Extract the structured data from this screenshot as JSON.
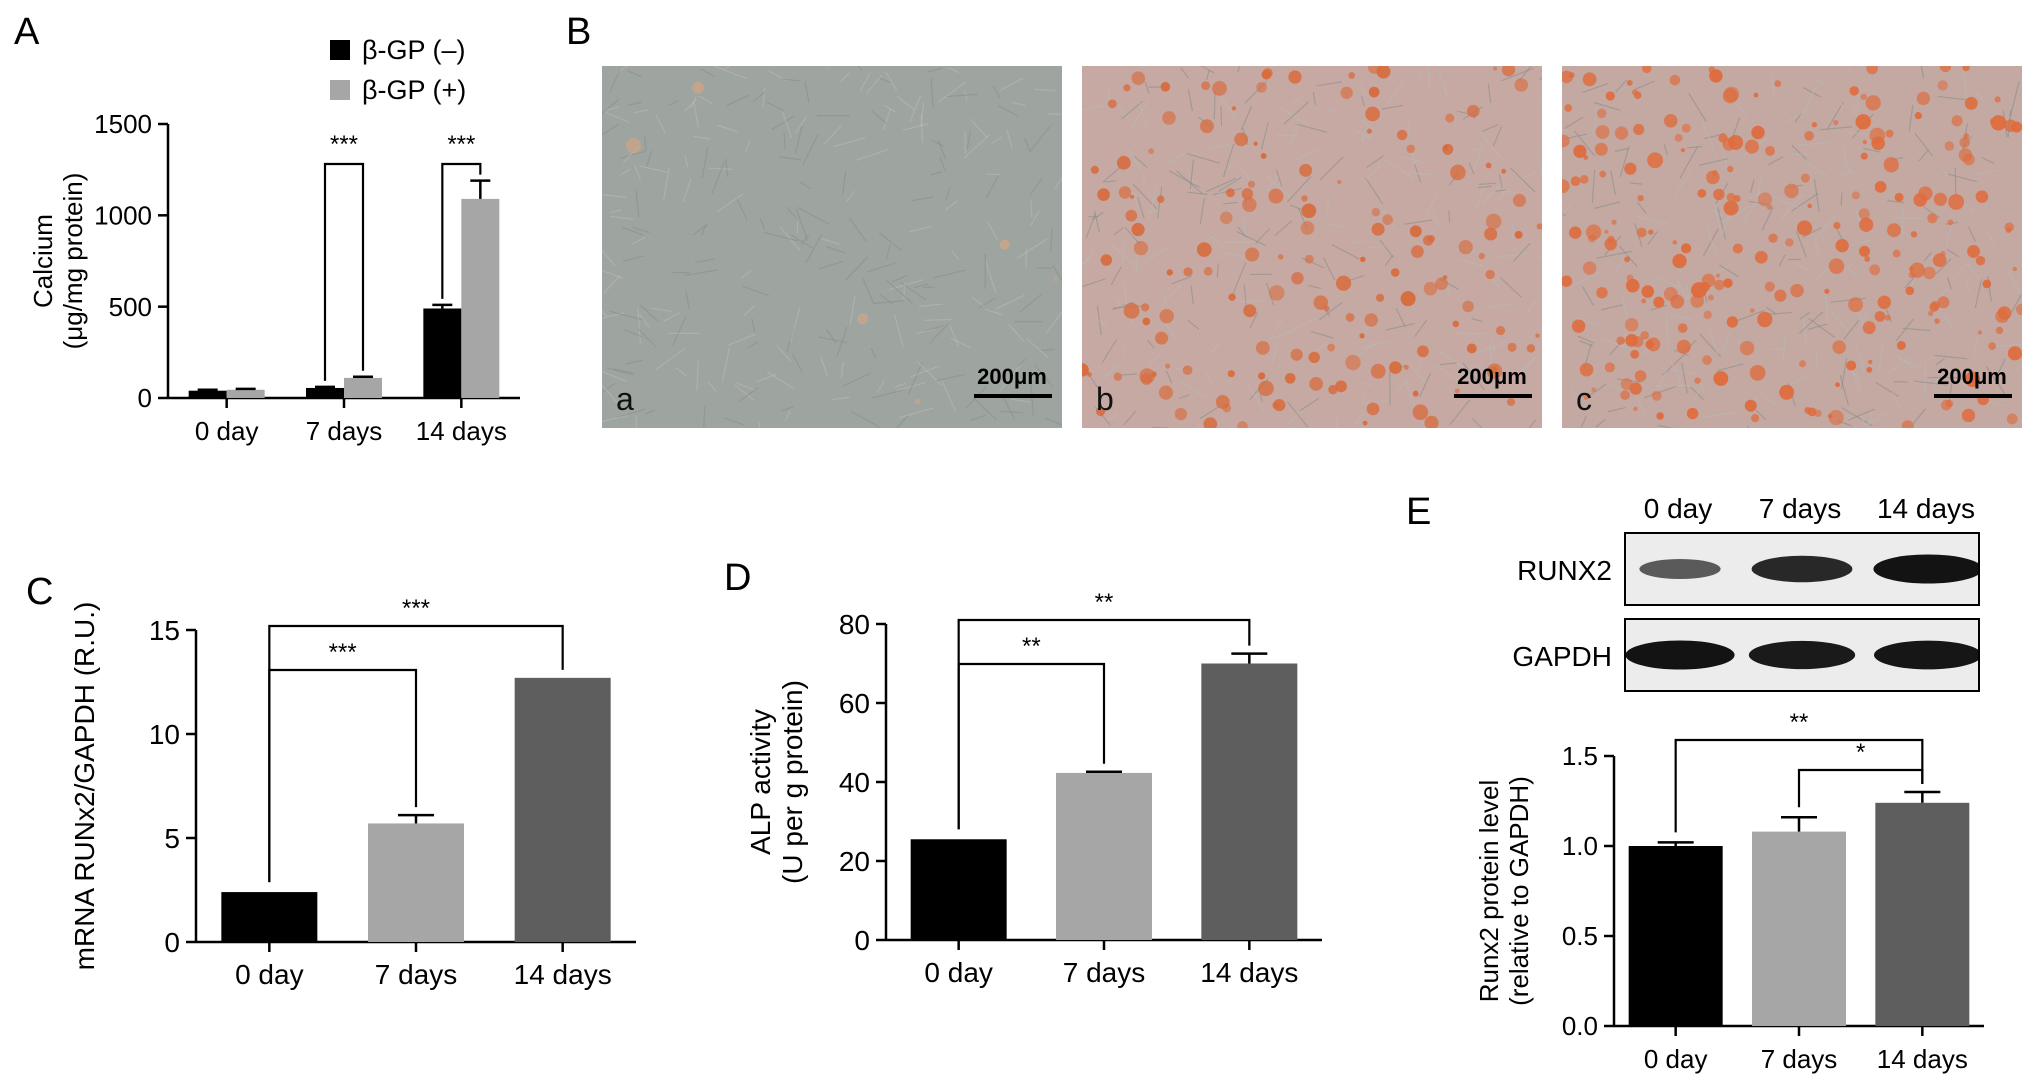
{
  "panel_letters": {
    "A": "A",
    "B": "B",
    "C": "C",
    "D": "D",
    "E": "E"
  },
  "microscopy": {
    "images": [
      {
        "label": "a",
        "scale_bar": "200μm",
        "tone": "#9ea4a0",
        "dots": 6,
        "dot_color": "#c9a58a"
      },
      {
        "label": "b",
        "scale_bar": "200μm",
        "tone": "#c7a9a4",
        "dots": 150,
        "dot_color": "#d86a3a"
      },
      {
        "label": "c",
        "scale_bar": "200μm",
        "tone": "#c4a8a2",
        "dots": 230,
        "dot_color": "#df6b3c"
      }
    ]
  },
  "western_blot": {
    "columns": [
      "0 day",
      "7 days",
      "14 days"
    ],
    "rows": [
      {
        "name": "RUNX2",
        "intensity": [
          0.45,
          0.8,
          0.95
        ]
      },
      {
        "name": "GAPDH",
        "intensity": [
          0.95,
          0.9,
          0.93
        ]
      }
    ]
  },
  "chart_data": [
    {
      "id": "A",
      "type": "bar",
      "categories": [
        "0 day",
        "7 days",
        "14 days"
      ],
      "series": [
        {
          "name": "β-GP (–)",
          "color": "#000000",
          "values": [
            40,
            55,
            490
          ],
          "errors": [
            5,
            6,
            20
          ]
        },
        {
          "name": "β-GP (+)",
          "color": "#a6a6a6",
          "values": [
            45,
            110,
            1090
          ],
          "errors": [
            5,
            6,
            100
          ]
        }
      ],
      "ylabel": "Calcium",
      "ylabel2": "(μg/mg protein)",
      "ylim": [
        0,
        1500
      ],
      "yticks": [
        0,
        500,
        1000,
        1500
      ],
      "legend": "top-right",
      "significance": [
        {
          "category": 1,
          "text": "***"
        },
        {
          "category": 2,
          "text": "***"
        }
      ]
    },
    {
      "id": "C",
      "type": "bar",
      "categories": [
        "0 day",
        "7 days",
        "14 days"
      ],
      "values": [
        2.4,
        5.7,
        12.7
      ],
      "errors": [
        0,
        0.4,
        0
      ],
      "colors": [
        "#000000",
        "#a6a6a6",
        "#5e5e5e"
      ],
      "ylabel": "mRNA RUNx2/GAPDH (R.U.)",
      "ylim": [
        0,
        15
      ],
      "yticks": [
        0,
        5,
        10,
        15
      ],
      "significance": [
        {
          "from": 0,
          "to": 1,
          "text": "***"
        },
        {
          "from": 0,
          "to": 2,
          "text": "***"
        }
      ]
    },
    {
      "id": "D",
      "type": "bar",
      "categories": [
        "0 day",
        "7 days",
        "14 days"
      ],
      "values": [
        25.5,
        42.3,
        70
      ],
      "errors": [
        0,
        0.3,
        2.5
      ],
      "colors": [
        "#000000",
        "#a6a6a6",
        "#5e5e5e"
      ],
      "ylabel": "ALP activity",
      "ylabel2": "(U per g protein)",
      "ylim": [
        0,
        80
      ],
      "yticks": [
        0,
        20,
        40,
        60,
        80
      ],
      "significance": [
        {
          "from": 0,
          "to": 1,
          "text": "**"
        },
        {
          "from": 0,
          "to": 2,
          "text": "**"
        }
      ]
    },
    {
      "id": "E",
      "type": "bar",
      "categories": [
        "0 day",
        "7 days",
        "14 days"
      ],
      "values": [
        1.0,
        1.08,
        1.24
      ],
      "errors": [
        0.02,
        0.08,
        0.06
      ],
      "colors": [
        "#000000",
        "#a6a6a6",
        "#5e5e5e"
      ],
      "ylabel": "Runx2 protein level",
      "ylabel2": "(relative to GAPDH)",
      "ylim": [
        0,
        1.5
      ],
      "yticks": [
        0.0,
        0.5,
        1.0,
        1.5
      ],
      "significance": [
        {
          "from": 0,
          "to": 2,
          "text": "**"
        },
        {
          "from": 1,
          "to": 2,
          "text": "*"
        }
      ]
    }
  ]
}
